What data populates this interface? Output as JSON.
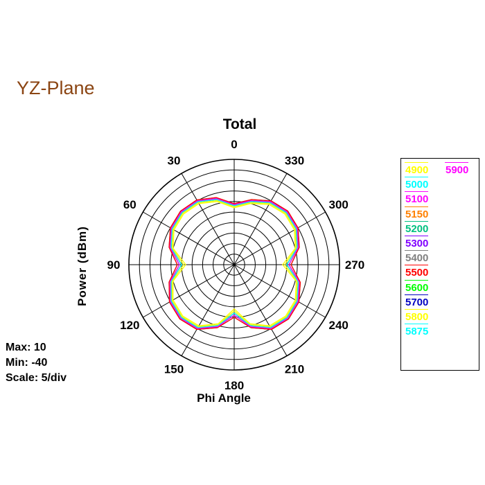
{
  "plane_title": "YZ-Plane",
  "stats": {
    "max": "Max: 10",
    "min": "Min: -40",
    "scale": "Scale: 5/div"
  },
  "chart_data": {
    "type": "polar",
    "title": "Total",
    "xlabel": "Phi Angle",
    "ylabel": "Power  (dBm)",
    "rlim": [
      -40,
      10
    ],
    "r_step": 5,
    "angle_ticks": [
      "0",
      "330",
      "300",
      "270",
      "240",
      "210",
      "180",
      "150",
      "120",
      "90",
      "60",
      "30"
    ],
    "angle_direction": "clockwise-decreasing, 0 at top, 90 on left, 270 on right",
    "grid": true,
    "legend_position": "right",
    "series": [
      {
        "name": "4900",
        "color": "#FFFF00",
        "values": [
          -13,
          -9,
          -6.5,
          -6,
          -7,
          -10,
          -17,
          -10,
          -6.5,
          -5.5,
          -6.5,
          -11,
          -19,
          -11,
          -6.5,
          -5.5,
          -6.5,
          -9.5,
          -17,
          -10,
          -7,
          -6,
          -7,
          -10
        ]
      },
      {
        "name": "5000",
        "color": "#00FFFF",
        "values": [
          -12.5,
          -8.5,
          -6,
          -5.5,
          -6.5,
          -9.5,
          -16,
          -9.5,
          -6,
          -5,
          -6,
          -10.5,
          -18,
          -10.5,
          -6,
          -5,
          -6,
          -9,
          -16,
          -9.5,
          -6.5,
          -5.5,
          -6.5,
          -9.5
        ]
      },
      {
        "name": "5100",
        "color": "#FF00FF",
        "values": [
          -12,
          -8,
          -5.5,
          -5,
          -6,
          -9,
          -15,
          -9,
          -5.5,
          -4.5,
          -5.5,
          -10,
          -17,
          -10,
          -5.5,
          -4.5,
          -5.5,
          -8.5,
          -15,
          -9,
          -6,
          -5,
          -6,
          -9
        ]
      },
      {
        "name": "5150",
        "color": "#FF8000",
        "values": [
          -12,
          -8,
          -5.5,
          -5,
          -6,
          -9,
          -15,
          -9,
          -5.5,
          -4.5,
          -5.5,
          -10,
          -17,
          -10,
          -5.5,
          -4.5,
          -5.5,
          -8.5,
          -15,
          -9,
          -6,
          -5,
          -6,
          -9
        ]
      },
      {
        "name": "5200",
        "color": "#00C080",
        "values": [
          -11.5,
          -7.5,
          -5,
          -4.5,
          -5.5,
          -8.5,
          -14,
          -8.5,
          -5,
          -4,
          -5,
          -9.5,
          -16,
          -9.5,
          -5,
          -4,
          -5,
          -8,
          -14,
          -8.5,
          -5.5,
          -4.5,
          -5.5,
          -8.5
        ]
      },
      {
        "name": "5300",
        "color": "#8000FF",
        "values": [
          -11.5,
          -7.5,
          -5,
          -4.5,
          -5.5,
          -8.5,
          -14,
          -8.5,
          -5,
          -4,
          -5,
          -9.5,
          -16,
          -9.5,
          -5,
          -4,
          -5,
          -8,
          -14,
          -8.5,
          -5.5,
          -4.5,
          -5.5,
          -8.5
        ]
      },
      {
        "name": "5400",
        "color": "#808080",
        "values": [
          -11,
          -7,
          -4.5,
          -4,
          -5,
          -8,
          -13,
          -8,
          -4.5,
          -3.5,
          -4.5,
          -9,
          -15,
          -9,
          -4.5,
          -3.5,
          -4.5,
          -7.5,
          -13,
          -8,
          -5,
          -4,
          -5,
          -8
        ]
      },
      {
        "name": "5500",
        "color": "#FF0000",
        "values": [
          -11,
          -7,
          -4.5,
          -4,
          -5,
          -8,
          -13,
          -8,
          -4.5,
          -3.5,
          -4.5,
          -9,
          -15,
          -9,
          -4.5,
          -3.5,
          -4.5,
          -7.5,
          -13,
          -8,
          -5,
          -4,
          -5,
          -8
        ]
      },
      {
        "name": "5600",
        "color": "#00FF00",
        "values": [
          -11.5,
          -7.5,
          -5,
          -4.5,
          -5.5,
          -8.5,
          -14,
          -8.5,
          -5,
          -4,
          -5,
          -9.5,
          -16,
          -9.5,
          -5,
          -4,
          -5,
          -8,
          -14,
          -8.5,
          -5.5,
          -4.5,
          -5.5,
          -8.5
        ]
      },
      {
        "name": "5700",
        "color": "#0000C0",
        "values": [
          -12,
          -8,
          -5.5,
          -5,
          -6,
          -9,
          -15,
          -9,
          -5.5,
          -4.5,
          -5.5,
          -10,
          -17,
          -10,
          -5.5,
          -4.5,
          -5.5,
          -8.5,
          -15,
          -9,
          -6,
          -5,
          -6,
          -9
        ]
      },
      {
        "name": "5800",
        "color": "#FFFF00",
        "values": [
          -12.5,
          -8.5,
          -6,
          -5.5,
          -6.5,
          -9.5,
          -16,
          -9.5,
          -6,
          -5,
          -6,
          -10.5,
          -18,
          -10.5,
          -6,
          -5,
          -6,
          -9,
          -16,
          -9.5,
          -6.5,
          -5.5,
          -6.5,
          -9.5
        ]
      },
      {
        "name": "5875",
        "color": "#00FFFF",
        "values": [
          -12,
          -8,
          -5.5,
          -5,
          -6,
          -9,
          -15,
          -9,
          -5.5,
          -4.5,
          -5.5,
          -10,
          -17,
          -10,
          -5.5,
          -4.5,
          -5.5,
          -8.5,
          -15,
          -9,
          -6,
          -5,
          -6,
          -9
        ]
      },
      {
        "name": "5900",
        "color": "#FF00FF",
        "values": [
          -11.5,
          -7.5,
          -5,
          -4.5,
          -5.5,
          -8.5,
          -14,
          -8.5,
          -5,
          -4,
          -5,
          -9.5,
          -16,
          -9.5,
          -5,
          -4,
          -5,
          -8,
          -14,
          -8.5,
          -5.5,
          -4.5,
          -5.5,
          -8.5
        ]
      }
    ],
    "series_angles": [
      0,
      15,
      30,
      45,
      60,
      75,
      90,
      105,
      120,
      135,
      150,
      165,
      180,
      195,
      210,
      225,
      240,
      255,
      270,
      285,
      300,
      315,
      330,
      345
    ]
  }
}
